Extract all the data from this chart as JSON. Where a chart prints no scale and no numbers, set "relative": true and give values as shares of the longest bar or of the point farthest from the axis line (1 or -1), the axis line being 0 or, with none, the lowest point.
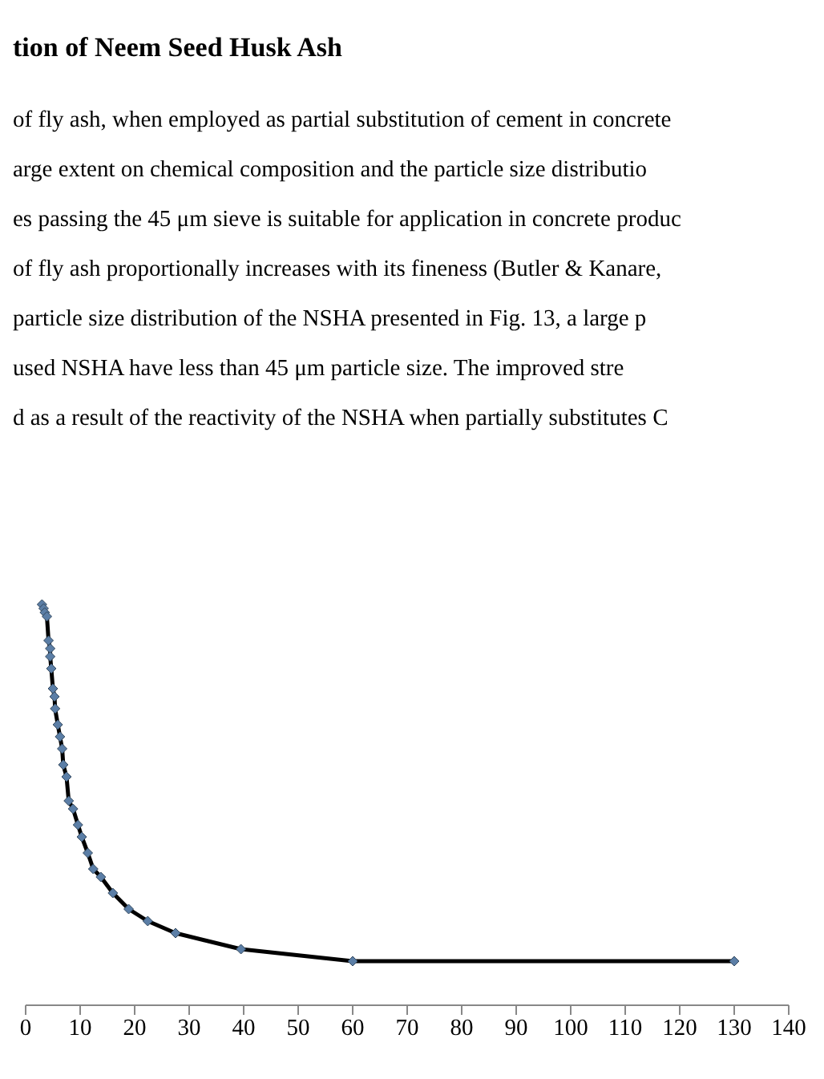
{
  "chart_data": {
    "type": "line",
    "title": "tion of Neem Seed Husk Ash",
    "annotations": [
      "of fly ash, when employed as partial substitution of cement in concrete",
      "arge extent on chemical composition and the particle size distributio",
      "es passing the 45 μm sieve is suitable for application in concrete produc",
      "of fly ash proportionally increases with its fineness (Butler & Kanare,",
      "particle size distribution of the NSHA presented in Fig. 13, a large p",
      "used NSHA have less than 45 μm particle size. The improved stre",
      "d as a result of the reactivity of the NSHA when partially substitutes C"
    ],
    "relative": true,
    "marker": "diamond",
    "grid": false,
    "legend": false,
    "xlim": [
      0,
      140
    ],
    "xticks": [
      0,
      10,
      20,
      30,
      40,
      50,
      60,
      70,
      80,
      90,
      100,
      110,
      120,
      130,
      140
    ],
    "series": [
      {
        "color": "#000000",
        "x": [
          3.0,
          3.3,
          3.5,
          3.9,
          4.2,
          4.5,
          4.5,
          4.7,
          5.0,
          5.3,
          5.4,
          5.9,
          6.3,
          6.7,
          6.9,
          7.5,
          7.9,
          8.7,
          9.6,
          10.3,
          11.4,
          12.4,
          13.8,
          16.0,
          18.9,
          22.4,
          27.5,
          39.5,
          60,
          130
        ],
        "values": [
          1.0,
          0.99,
          0.98,
          0.97,
          0.91,
          0.89,
          0.87,
          0.84,
          0.79,
          0.77,
          0.74,
          0.7,
          0.67,
          0.64,
          0.6,
          0.57,
          0.51,
          0.49,
          0.45,
          0.42,
          0.38,
          0.34,
          0.32,
          0.28,
          0.24,
          0.21,
          0.18,
          0.14,
          0.11,
          0.11
        ]
      }
    ]
  }
}
